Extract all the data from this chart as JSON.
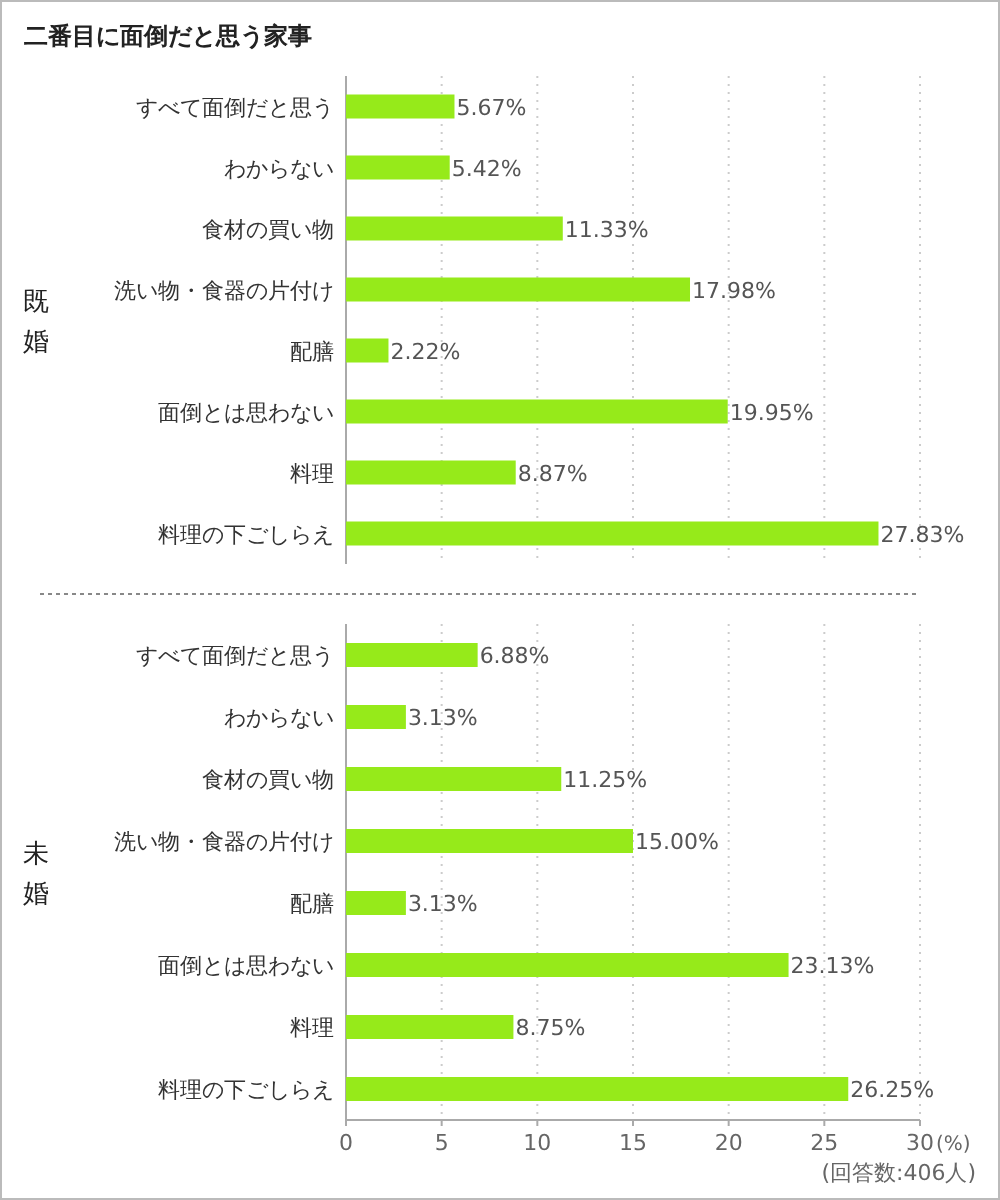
{
  "chart_data": [
    {
      "type": "bar",
      "orientation": "horizontal",
      "title": "二番目に面倒だと思う家事",
      "ylabel": "既婚",
      "color": "#96ea1a",
      "grid": "x",
      "tick_labels": "y",
      "xlim": [
        0,
        30
      ],
      "xticks": [
        0,
        5,
        10,
        15,
        20,
        25,
        30
      ],
      "categories": [
        "すべて面倒だと思う",
        "わからない",
        "食材の買い物",
        "洗い物・食器の片付け",
        "配膳",
        "面倒とは思わない",
        "料理",
        "料理の下ごしらえ"
      ],
      "values": [
        5.67,
        5.42,
        11.33,
        17.98,
        2.22,
        19.95,
        8.87,
        27.83
      ],
      "value_labels": [
        "5.67%",
        "5.42%",
        "11.33%",
        "17.98%",
        "2.22%",
        "19.95%",
        "8.87%",
        "27.83%"
      ]
    },
    {
      "type": "bar",
      "orientation": "horizontal",
      "ylabel": "未婚",
      "xlabel": "(%)",
      "color": "#96ea1a",
      "grid": "x",
      "xlim": [
        0,
        30
      ],
      "xticks": [
        0,
        5,
        10,
        15,
        20,
        25,
        30
      ],
      "categories": [
        "すべて面倒だと思う",
        "わからない",
        "食材の買い物",
        "洗い物・食器の片付け",
        "配膳",
        "面倒とは思わない",
        "料理",
        "料理の下ごしらえ"
      ],
      "values": [
        6.88,
        3.13,
        11.25,
        15.0,
        3.13,
        23.13,
        8.75,
        26.25
      ],
      "value_labels": [
        "6.88%",
        "3.13%",
        "11.25%",
        "15.00%",
        "3.13%",
        "23.13%",
        "8.75%",
        "26.25%"
      ],
      "annotations": [
        "(回答数:406人)"
      ]
    }
  ]
}
